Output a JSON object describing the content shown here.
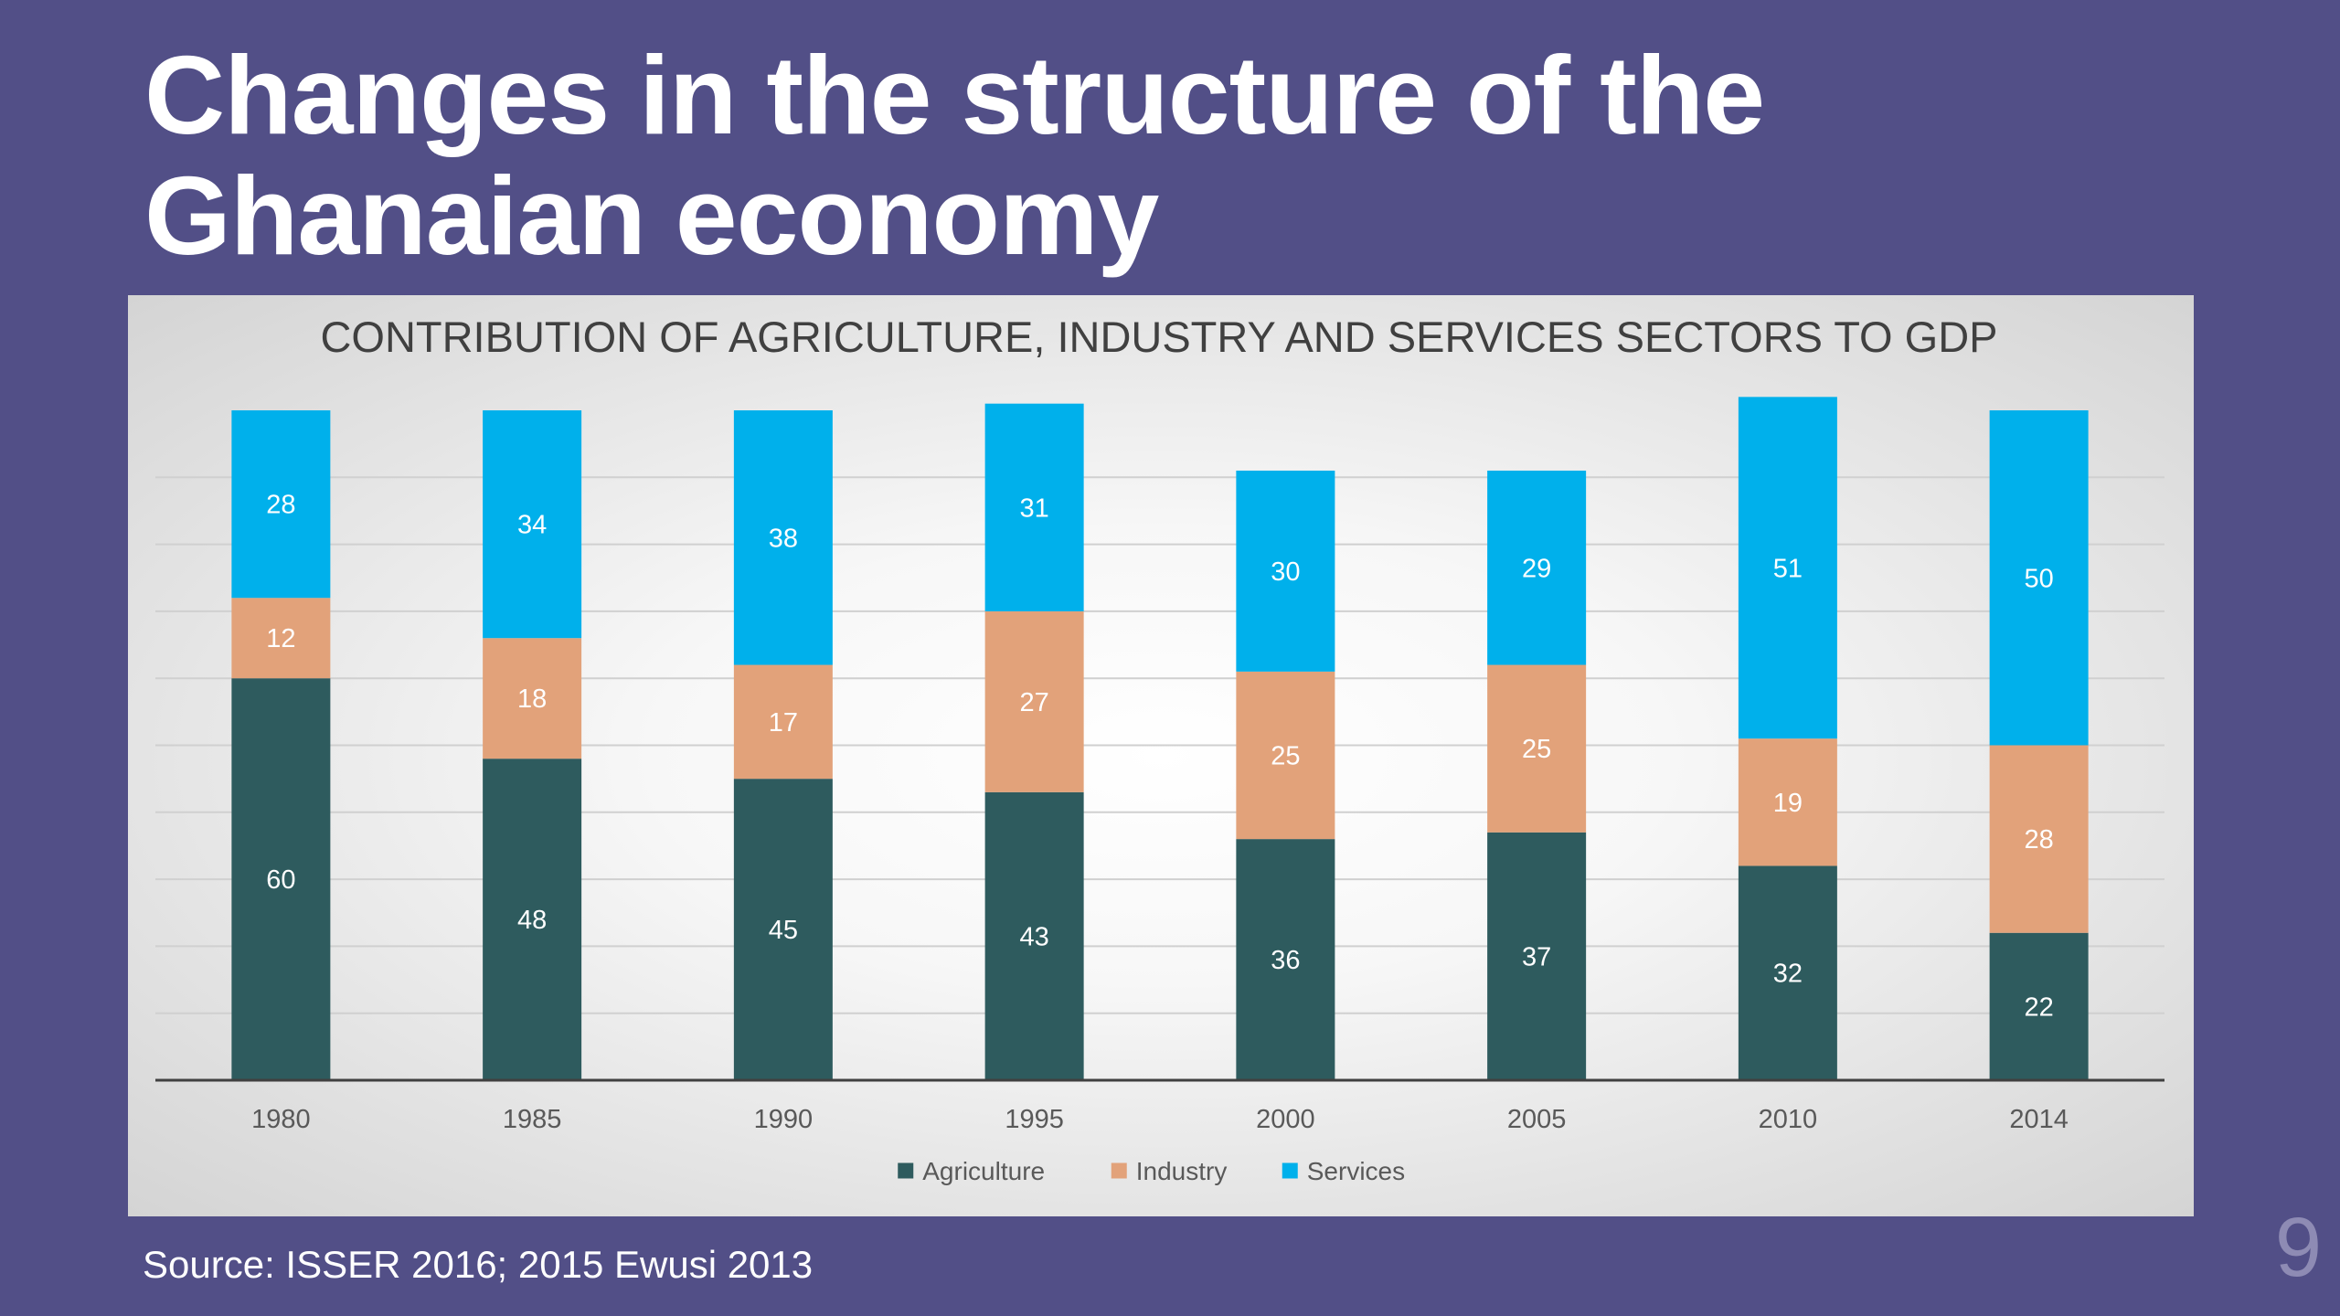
{
  "slide": {
    "title": "Changes in the structure of the Ghanaian economy",
    "source": "Source: ISSER 2016; 2015 Ewusi 2013",
    "page_number": "9"
  },
  "chart_data": {
    "type": "bar",
    "stacked": true,
    "title": "CONTRIBUTION OF AGRICULTURE, INDUSTRY AND SERVICES SECTORS TO GDP",
    "xlabel": "",
    "ylabel": "",
    "categories": [
      "1980",
      "1985",
      "1990",
      "1995",
      "2000",
      "2005",
      "2010",
      "2014"
    ],
    "series": [
      {
        "name": "Agriculture",
        "color": "#2e5b5e",
        "values": [
          60,
          48,
          45,
          43,
          36,
          37,
          32,
          22
        ]
      },
      {
        "name": "Industry",
        "color": "#e2a27a",
        "values": [
          12,
          18,
          17,
          27,
          25,
          25,
          19,
          28
        ]
      },
      {
        "name": "Services",
        "color": "#00b0eb",
        "values": [
          28,
          34,
          38,
          31,
          30,
          29,
          51,
          50
        ]
      }
    ],
    "data_labels": true,
    "ylim": [
      0,
      100
    ],
    "grid": true,
    "legend": "bottom",
    "label_color": "#ffffff",
    "axis_color": "#404040",
    "grid_color": "#d0d0d0",
    "tick_color": "#595959"
  }
}
